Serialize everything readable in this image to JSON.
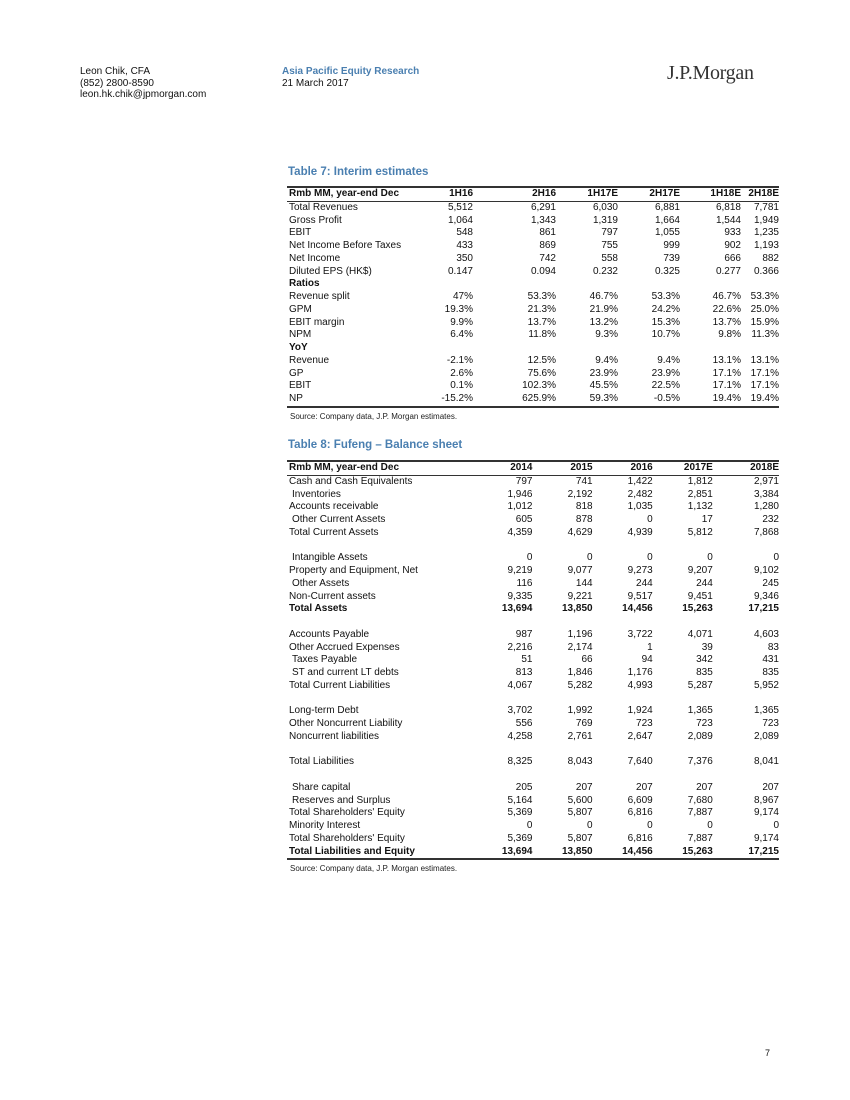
{
  "header": {
    "author_name": "Leon Chik, CFA",
    "author_phone": "(852) 2800-8590",
    "author_email": "leon.hk.chik@jpmorgan.com",
    "department": "Asia Pacific Equity Research",
    "date": "21 March 2017",
    "logo": "J.P.Morgan"
  },
  "table7": {
    "title": "Table 7: Interim estimates",
    "columns": [
      "Rmb MM, year-end Dec",
      "1H16",
      "2H16",
      "1H17E",
      "2H17E",
      "1H18E",
      "2H18E"
    ],
    "rows": [
      {
        "label": "Total Revenues",
        "values": [
          "5,512",
          "6,291",
          "6,030",
          "6,881",
          "6,818",
          "7,781"
        ]
      },
      {
        "label": "Gross Profit",
        "values": [
          "1,064",
          "1,343",
          "1,319",
          "1,664",
          "1,544",
          "1,949"
        ]
      },
      {
        "label": "EBIT",
        "values": [
          "548",
          "861",
          "797",
          "1,055",
          "933",
          "1,235"
        ]
      },
      {
        "label": "Net Income Before Taxes",
        "values": [
          "433",
          "869",
          "755",
          "999",
          "902",
          "1,193"
        ]
      },
      {
        "label": "Net Income",
        "values": [
          "350",
          "742",
          "558",
          "739",
          "666",
          "882"
        ]
      },
      {
        "label": "Diluted EPS (HK$)",
        "values": [
          "0.147",
          "0.094",
          "0.232",
          "0.325",
          "0.277",
          "0.366"
        ]
      },
      {
        "label": "Ratios",
        "values": [],
        "bold": true
      },
      {
        "label": "Revenue split",
        "values": [
          "47%",
          "53.3%",
          "46.7%",
          "53.3%",
          "46.7%",
          "53.3%"
        ]
      },
      {
        "label": "GPM",
        "values": [
          "19.3%",
          "21.3%",
          "21.9%",
          "24.2%",
          "22.6%",
          "25.0%"
        ]
      },
      {
        "label": "EBIT margin",
        "values": [
          "9.9%",
          "13.7%",
          "13.2%",
          "15.3%",
          "13.7%",
          "15.9%"
        ]
      },
      {
        "label": "NPM",
        "values": [
          "6.4%",
          "11.8%",
          "9.3%",
          "10.7%",
          "9.8%",
          "11.3%"
        ]
      },
      {
        "label": "YoY",
        "values": [],
        "bold": true
      },
      {
        "label": "Revenue",
        "values": [
          "-2.1%",
          "12.5%",
          "9.4%",
          "9.4%",
          "13.1%",
          "13.1%"
        ]
      },
      {
        "label": "GP",
        "values": [
          "2.6%",
          "75.6%",
          "23.9%",
          "23.9%",
          "17.1%",
          "17.1%"
        ]
      },
      {
        "label": "EBIT",
        "values": [
          "0.1%",
          "102.3%",
          "45.5%",
          "22.5%",
          "17.1%",
          "17.1%"
        ]
      },
      {
        "label": "NP",
        "values": [
          "-15.2%",
          "625.9%",
          "59.3%",
          "-0.5%",
          "19.4%",
          "19.4%"
        ]
      }
    ],
    "source": "Source: Company data, J.P. Morgan estimates."
  },
  "table8": {
    "title": "Table 8: Fufeng – Balance sheet",
    "columns": [
      "Rmb MM, year-end Dec",
      "2014",
      "2015",
      "2016",
      "2017E",
      "2018E"
    ],
    "rows": [
      {
        "label": "Cash and Cash Equivalents",
        "values": [
          "797",
          "741",
          "1,422",
          "1,812",
          "2,971"
        ]
      },
      {
        "label": "Inventories",
        "indent": true,
        "values": [
          "1,946",
          "2,192",
          "2,482",
          "2,851",
          "3,384"
        ]
      },
      {
        "label": "Accounts receivable",
        "values": [
          "1,012",
          "818",
          "1,035",
          "1,132",
          "1,280"
        ]
      },
      {
        "label": "Other Current Assets",
        "indent": true,
        "values": [
          "605",
          "878",
          "0",
          "17",
          "232"
        ]
      },
      {
        "label": "Total Current Assets",
        "values": [
          "4,359",
          "4,629",
          "4,939",
          "5,812",
          "7,868"
        ]
      },
      {
        "label": "",
        "values": []
      },
      {
        "label": "Intangible Assets",
        "indent": true,
        "values": [
          "0",
          "0",
          "0",
          "0",
          "0"
        ]
      },
      {
        "label": "Property and Equipment, Net",
        "values": [
          "9,219",
          "9,077",
          "9,273",
          "9,207",
          "9,102"
        ]
      },
      {
        "label": "Other Assets",
        "indent": true,
        "values": [
          "116",
          "144",
          "244",
          "244",
          "245"
        ]
      },
      {
        "label": "Non-Current assets",
        "values": [
          "9,335",
          "9,221",
          "9,517",
          "9,451",
          "9,346"
        ]
      },
      {
        "label": "Total Assets",
        "bold": true,
        "values": [
          "13,694",
          "13,850",
          "14,456",
          "15,263",
          "17,215"
        ]
      },
      {
        "label": "",
        "values": []
      },
      {
        "label": "Accounts Payable",
        "values": [
          "987",
          "1,196",
          "3,722",
          "4,071",
          "4,603"
        ]
      },
      {
        "label": "Other Accrued Expenses",
        "values": [
          "2,216",
          "2,174",
          "1",
          "39",
          "83"
        ]
      },
      {
        "label": "Taxes Payable",
        "indent": true,
        "values": [
          "51",
          "66",
          "94",
          "342",
          "431"
        ]
      },
      {
        "label": "ST and current LT debts",
        "indent": true,
        "values": [
          "813",
          "1,846",
          "1,176",
          "835",
          "835"
        ]
      },
      {
        "label": "Total Current Liabilities",
        "values": [
          "4,067",
          "5,282",
          "4,993",
          "5,287",
          "5,952"
        ]
      },
      {
        "label": "",
        "values": []
      },
      {
        "label": "Long-term Debt",
        "values": [
          "3,702",
          "1,992",
          "1,924",
          "1,365",
          "1,365"
        ]
      },
      {
        "label": "Other Noncurrent Liability",
        "values": [
          "556",
          "769",
          "723",
          "723",
          "723"
        ]
      },
      {
        "label": "Noncurrent liabilities",
        "values": [
          "4,258",
          "2,761",
          "2,647",
          "2,089",
          "2,089"
        ]
      },
      {
        "label": "",
        "values": []
      },
      {
        "label": "Total Liabilities",
        "values": [
          "8,325",
          "8,043",
          "7,640",
          "7,376",
          "8,041"
        ]
      },
      {
        "label": "",
        "values": []
      },
      {
        "label": "Share capital",
        "indent": true,
        "values": [
          "205",
          "207",
          "207",
          "207",
          "207"
        ]
      },
      {
        "label": "Reserves and Surplus",
        "indent": true,
        "values": [
          "5,164",
          "5,600",
          "6,609",
          "7,680",
          "8,967"
        ]
      },
      {
        "label": "Total Shareholders' Equity",
        "values": [
          "5,369",
          "5,807",
          "6,816",
          "7,887",
          "9,174"
        ]
      },
      {
        "label": "Minority Interest",
        "values": [
          "0",
          "0",
          "0",
          "0",
          "0"
        ]
      },
      {
        "label": "Total Shareholders' Equity",
        "values": [
          "5,369",
          "5,807",
          "6,816",
          "7,887",
          "9,174"
        ]
      },
      {
        "label": "Total Liabilities and Equity",
        "bold": true,
        "values": [
          "13,694",
          "13,850",
          "14,456",
          "15,263",
          "17,215"
        ]
      }
    ],
    "source": "Source: Company data, J.P. Morgan estimates."
  },
  "footer": {
    "page_number": "7"
  }
}
